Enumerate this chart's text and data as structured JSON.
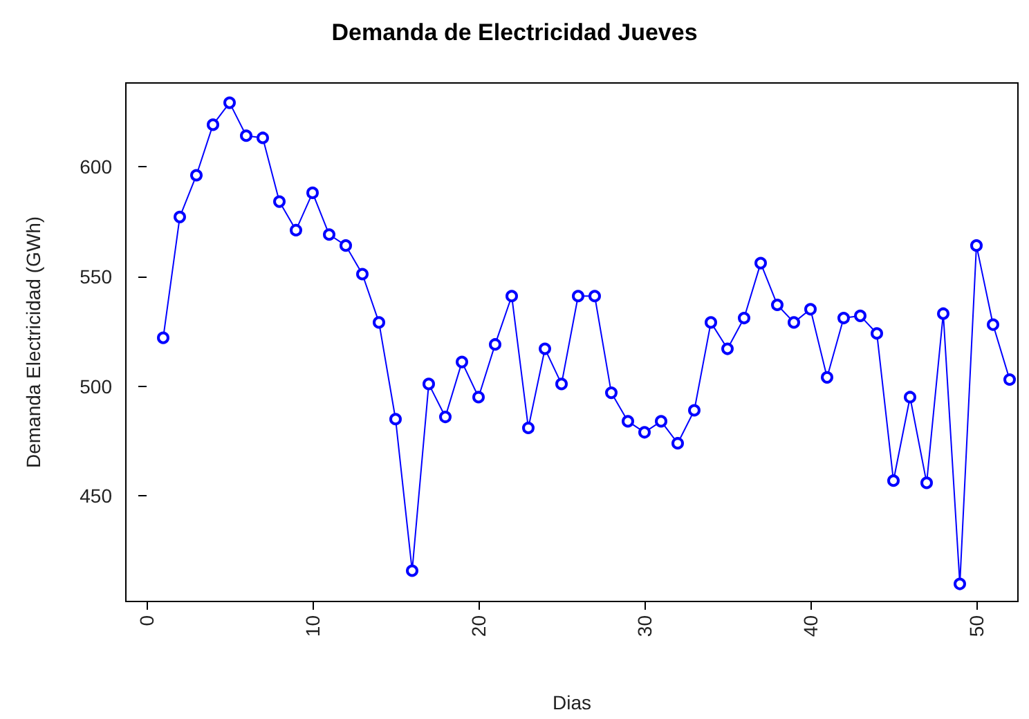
{
  "chart_data": {
    "type": "line",
    "title": "Demanda de Electricidad Jueves",
    "xlabel": "Dias",
    "ylabel": "Demanda Electricidad (GWh)",
    "x": [
      1,
      2,
      3,
      4,
      5,
      6,
      7,
      8,
      9,
      10,
      11,
      12,
      13,
      14,
      15,
      16,
      17,
      18,
      19,
      20,
      21,
      22,
      23,
      24,
      25,
      26,
      27,
      28,
      29,
      30,
      31,
      32,
      33,
      34,
      35,
      36,
      37,
      38,
      39,
      40,
      41,
      42,
      43,
      44,
      45,
      46,
      47,
      48,
      49,
      50,
      51,
      52
    ],
    "series": [
      {
        "color": "#0000ff",
        "values": [
          522,
          577,
          596,
          619,
          629,
          614,
          613,
          584,
          571,
          588,
          569,
          564,
          551,
          529,
          485,
          416,
          501,
          486,
          511,
          495,
          519,
          541,
          481,
          517,
          501,
          541,
          541,
          497,
          484,
          479,
          484,
          474,
          489,
          529,
          517,
          531,
          556,
          537,
          529,
          535,
          504,
          531,
          532,
          524,
          457,
          495,
          456,
          533,
          410,
          564,
          528,
          503
        ]
      }
    ],
    "xlim": [
      -1.25,
      52.5
    ],
    "xticks": [
      0,
      10,
      20,
      30,
      40,
      50
    ],
    "ylim": [
      402,
      638
    ],
    "yticks": [
      450,
      500,
      550,
      600
    ],
    "grid": false,
    "marker": "circle",
    "line_style": "solid"
  }
}
